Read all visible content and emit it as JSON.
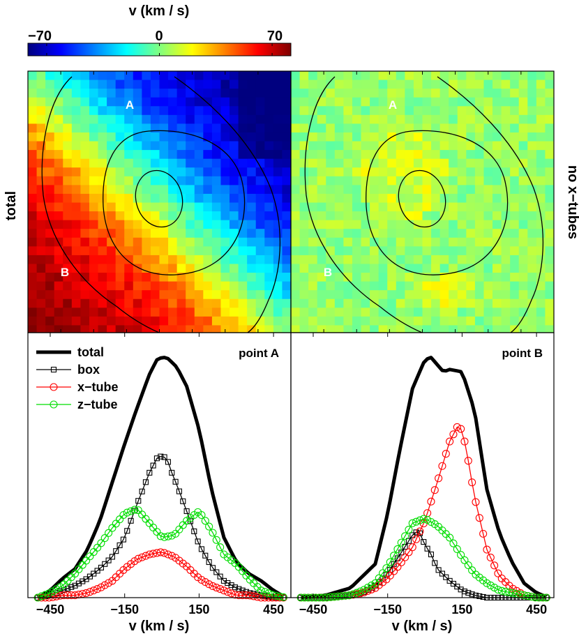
{
  "colorbar": {
    "title": "v (km / s)",
    "min_label": "−70",
    "mid_label": "0",
    "max_label": "70",
    "range": [
      -70,
      70
    ],
    "stops": [
      "#00007f",
      "#0000ff",
      "#0080ff",
      "#00ffff",
      "#80ff80",
      "#ffff00",
      "#ff8000",
      "#ff0000",
      "#7f0000"
    ]
  },
  "maps": {
    "left_ylabel": "total",
    "right_ylabel": "no x−tubes",
    "point_a_label": "A",
    "point_b_label": "B"
  },
  "chart_data": [
    {
      "type": "heatmap",
      "title": "",
      "panel": "total",
      "value_units": "km/s",
      "field": "velocity gradient: about +60 at lower-left, about 0 along the diagonal, about -65 at upper-right",
      "points": [
        {
          "name": "A"
        },
        {
          "name": "B"
        }
      ]
    },
    {
      "type": "heatmap",
      "title": "",
      "panel": "no x-tubes",
      "value_units": "km/s",
      "field": "near zero everywhere (-10 to +15)",
      "points": [
        {
          "name": "A"
        },
        {
          "name": "B"
        }
      ]
    },
    {
      "type": "line",
      "title": "point A",
      "xlabel": "v (km / s)",
      "ylabel": "",
      "xlim": [
        -540,
        520
      ],
      "ylim": [
        0,
        1.08
      ],
      "xticks": [
        -450,
        -150,
        150,
        450
      ],
      "xtick_labels": [
        "−450",
        "−150",
        "150",
        "450"
      ],
      "legend": [
        "total",
        "box",
        "x−tube",
        "z−tube"
      ],
      "series": [
        {
          "name": "total",
          "color": "#000000",
          "marker": "none",
          "x": [
            -500,
            -450,
            -400,
            -350,
            -300,
            -250,
            -200,
            -150,
            -100,
            -50,
            -20,
            0,
            20,
            40,
            60,
            100,
            150,
            200,
            250,
            300,
            350,
            400,
            450,
            500
          ],
          "y": [
            0,
            0.03,
            0.08,
            0.12,
            0.2,
            0.32,
            0.48,
            0.64,
            0.79,
            0.93,
            0.99,
            1.0,
            1.0,
            0.98,
            0.96,
            0.88,
            0.7,
            0.45,
            0.25,
            0.15,
            0.1,
            0.07,
            0.03,
            0
          ]
        },
        {
          "name": "box",
          "color": "#000000",
          "marker": "square",
          "x": [
            -500,
            -450,
            -400,
            -350,
            -300,
            -250,
            -200,
            -150,
            -100,
            -50,
            -20,
            0,
            20,
            40,
            60,
            100,
            150,
            200,
            250,
            300,
            350,
            400,
            450,
            500
          ],
          "y": [
            0,
            0.01,
            0.03,
            0.05,
            0.08,
            0.12,
            0.17,
            0.25,
            0.39,
            0.52,
            0.58,
            0.59,
            0.58,
            0.52,
            0.47,
            0.36,
            0.22,
            0.13,
            0.07,
            0.04,
            0.02,
            0.01,
            0,
            0
          ]
        },
        {
          "name": "x−tube",
          "color": "#ff0000",
          "marker": "circle",
          "x": [
            -500,
            -450,
            -400,
            -350,
            -300,
            -250,
            -200,
            -150,
            -100,
            -50,
            0,
            50,
            100,
            150,
            200,
            250,
            300,
            350,
            400,
            450,
            500
          ],
          "y": [
            0,
            0,
            0.01,
            0.01,
            0.02,
            0.04,
            0.07,
            0.12,
            0.16,
            0.18,
            0.19,
            0.17,
            0.13,
            0.08,
            0.05,
            0.03,
            0.01,
            0.01,
            0,
            0,
            0
          ]
        },
        {
          "name": "z−tube",
          "color": "#00dd00",
          "marker": "circle",
          "x": [
            -500,
            -450,
            -400,
            -350,
            -300,
            -250,
            -200,
            -150,
            -100,
            -50,
            0,
            50,
            100,
            150,
            200,
            250,
            300,
            350,
            400,
            450,
            500
          ],
          "y": [
            0,
            0.02,
            0.05,
            0.1,
            0.16,
            0.22,
            0.29,
            0.35,
            0.37,
            0.31,
            0.25,
            0.26,
            0.32,
            0.36,
            0.28,
            0.18,
            0.14,
            0.08,
            0.03,
            0.01,
            0
          ]
        }
      ]
    },
    {
      "type": "line",
      "title": "point B",
      "xlabel": "v (km / s)",
      "ylabel": "",
      "xlim": [
        -540,
        520
      ],
      "ylim": [
        0,
        1.08
      ],
      "xticks": [
        -450,
        -150,
        150,
        450
      ],
      "xtick_labels": [
        "−450",
        "−150",
        "150",
        "450"
      ],
      "series": [
        {
          "name": "total",
          "color": "#000000",
          "marker": "none",
          "x": [
            -500,
            -400,
            -300,
            -200,
            -150,
            -100,
            -50,
            0,
            25,
            50,
            75,
            100,
            150,
            200,
            250,
            300,
            350,
            400,
            450,
            500
          ],
          "y": [
            0,
            0.01,
            0.04,
            0.14,
            0.35,
            0.62,
            0.87,
            0.99,
            1.0,
            0.97,
            0.94,
            0.95,
            0.94,
            0.78,
            0.45,
            0.27,
            0.15,
            0.06,
            0.02,
            0
          ]
        },
        {
          "name": "box",
          "color": "#000000",
          "marker": "square",
          "x": [
            -500,
            -400,
            -300,
            -250,
            -200,
            -150,
            -100,
            -50,
            -25,
            0,
            25,
            50,
            100,
            150,
            200,
            250,
            300,
            350,
            400,
            450,
            500
          ],
          "y": [
            0,
            0,
            0.01,
            0.02,
            0.05,
            0.1,
            0.18,
            0.26,
            0.28,
            0.22,
            0.18,
            0.12,
            0.07,
            0.03,
            0.01,
            0,
            0,
            0,
            0,
            0,
            0
          ]
        },
        {
          "name": "x−tube",
          "color": "#ff0000",
          "marker": "circle",
          "x": [
            -500,
            -400,
            -300,
            -250,
            -200,
            -150,
            -100,
            -50,
            0,
            50,
            100,
            130,
            150,
            170,
            200,
            250,
            300,
            350,
            400,
            450,
            500
          ],
          "y": [
            0,
            0,
            0.01,
            0.02,
            0.04,
            0.08,
            0.14,
            0.21,
            0.32,
            0.48,
            0.65,
            0.71,
            0.7,
            0.6,
            0.42,
            0.2,
            0.09,
            0.04,
            0.01,
            0,
            0
          ]
        },
        {
          "name": "z−tube",
          "color": "#00dd00",
          "marker": "circle",
          "x": [
            -500,
            -400,
            -300,
            -250,
            -200,
            -150,
            -100,
            -50,
            0,
            50,
            100,
            150,
            200,
            250,
            300,
            350,
            400,
            450,
            500
          ],
          "y": [
            0,
            0,
            0.01,
            0.03,
            0.06,
            0.13,
            0.22,
            0.31,
            0.33,
            0.3,
            0.25,
            0.17,
            0.1,
            0.06,
            0.03,
            0.02,
            0.01,
            0,
            0
          ]
        }
      ]
    }
  ]
}
